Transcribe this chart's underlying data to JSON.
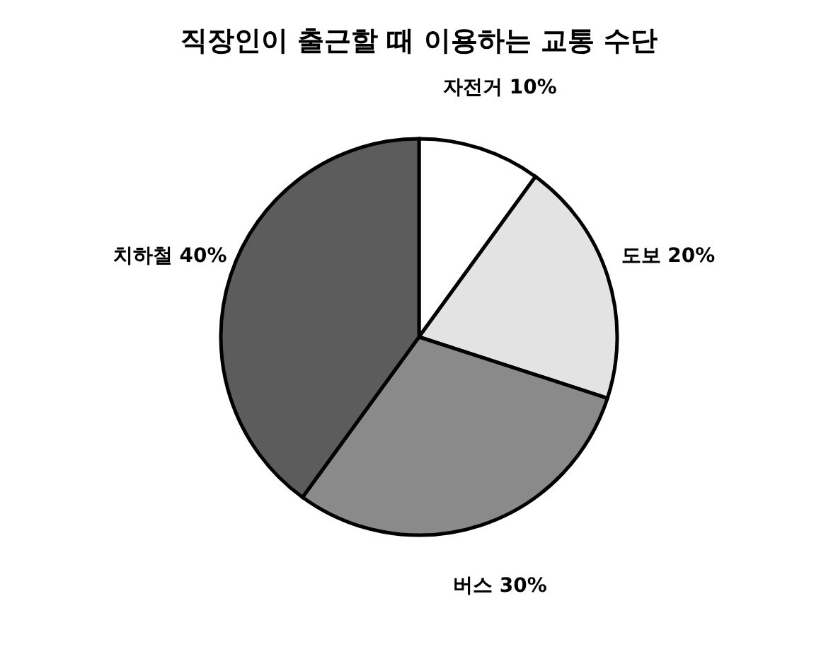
{
  "chart_data": {
    "type": "pie",
    "title": "직장인이 출근할 때 이용하는 교통 수단",
    "categories": [
      "자전거",
      "도보",
      "버스",
      "치하철"
    ],
    "values": [
      10,
      20,
      30,
      40
    ],
    "value_labels": [
      "10%",
      "20%",
      "30%",
      "40%"
    ],
    "colors": [
      "#ffffff",
      "#e3e3e3",
      "#8a8a8a",
      "#5c5c5c"
    ]
  }
}
